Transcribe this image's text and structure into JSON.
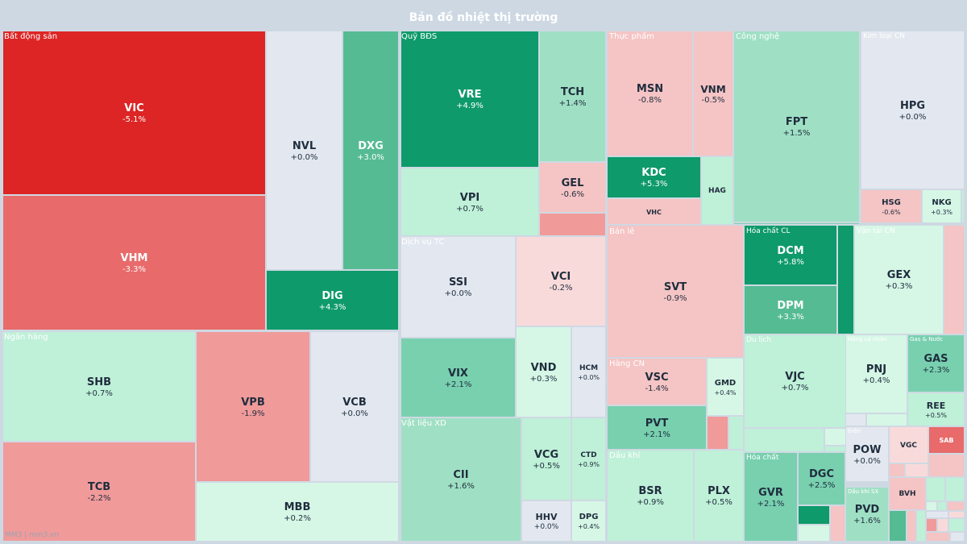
{
  "title": "Bản đồ nhiệt thị trường",
  "footer": "MM3 | mm3.vn",
  "colors": {
    "background": "#cdd8e3",
    "title": "#ffffff",
    "sector_label": "#ffffff",
    "text_dark": "#1f2d3d",
    "scale": {
      "strong_down": "#dd2525",
      "down": "#e86a6a",
      "mild_down": "#f09a9a",
      "slight_down": "#f5c4c4",
      "tiny_down": "#f9dada",
      "flat": "#e3e8f0",
      "tiny_up": "#d6f7e6",
      "slight_up": "#bff0d8",
      "mild_up": "#9fe0c4",
      "up": "#78d0af",
      "strong_up_soft": "#55bb93",
      "strong_up": "#0e9a6a"
    }
  },
  "chart_data": {
    "type": "heatmap",
    "title": "Bản đồ nhiệt thị trường",
    "value_unit": "% change",
    "sectors": [
      {
        "name": "Bất động sản",
        "stocks": [
          {
            "symbol": "VIC",
            "change": -5.1,
            "label": "-5.1%"
          },
          {
            "symbol": "VHM",
            "change": -3.3,
            "label": "-3.3%"
          },
          {
            "symbol": "NVL",
            "change": 0.0,
            "label": "+0.0%"
          },
          {
            "symbol": "DXG",
            "change": 3.0,
            "label": "+3.0%"
          },
          {
            "symbol": "DIG",
            "change": 4.3,
            "label": "+4.3%"
          }
        ]
      },
      {
        "name": "Quỹ BĐS",
        "stocks": [
          {
            "symbol": "VRE",
            "change": 4.9,
            "label": "+4.9%"
          },
          {
            "symbol": "TCH",
            "change": 1.4,
            "label": "+1.4%"
          },
          {
            "symbol": "VPI",
            "change": 0.7,
            "label": "+0.7%"
          },
          {
            "symbol": "GEL",
            "change": -0.6,
            "label": "-0.6%"
          }
        ]
      },
      {
        "name": "Thực phẩm",
        "stocks": [
          {
            "symbol": "MSN",
            "change": -0.8,
            "label": "-0.8%"
          },
          {
            "symbol": "VNM",
            "change": -0.5,
            "label": "-0.5%"
          },
          {
            "symbol": "KDC",
            "change": 5.3,
            "label": "+5.3%"
          },
          {
            "symbol": "HAG",
            "change": null,
            "label": ""
          },
          {
            "symbol": "VHC",
            "change": null,
            "label": ""
          }
        ]
      },
      {
        "name": "Công nghệ",
        "stocks": [
          {
            "symbol": "FPT",
            "change": 1.5,
            "label": "+1.5%"
          }
        ]
      },
      {
        "name": "Kim loại CN",
        "stocks": [
          {
            "symbol": "HPG",
            "change": 0.0,
            "label": "+0.0%"
          },
          {
            "symbol": "HSG",
            "change": -0.6,
            "label": "-0.6%"
          },
          {
            "symbol": "NKG",
            "change": 0.3,
            "label": "+0.3%"
          }
        ]
      },
      {
        "name": "Ngân hàng",
        "stocks": [
          {
            "symbol": "SHB",
            "change": 0.7,
            "label": "+0.7%"
          },
          {
            "symbol": "TCB",
            "change": -2.2,
            "label": "-2.2%"
          },
          {
            "symbol": "VPB",
            "change": -1.9,
            "label": "-1.9%"
          },
          {
            "symbol": "VCB",
            "change": 0.0,
            "label": "+0.0%"
          },
          {
            "symbol": "MBB",
            "change": 0.2,
            "label": "+0.2%"
          }
        ]
      },
      {
        "name": "Dịch vụ TC",
        "stocks": [
          {
            "symbol": "SSI",
            "change": 0.0,
            "label": "+0.0%"
          },
          {
            "symbol": "VCI",
            "change": -0.2,
            "label": "-0.2%"
          },
          {
            "symbol": "VIX",
            "change": 2.1,
            "label": "+2.1%"
          },
          {
            "symbol": "VND",
            "change": 0.3,
            "label": "+0.3%"
          },
          {
            "symbol": "HCM",
            "change": 0.0,
            "label": "+0.0%"
          }
        ]
      },
      {
        "name": "Vật liệu XD",
        "stocks": [
          {
            "symbol": "CII",
            "change": 1.6,
            "label": "+1.6%"
          },
          {
            "symbol": "VCG",
            "change": 0.5,
            "label": "+0.5%"
          },
          {
            "symbol": "CTD",
            "change": 0.9,
            "label": "+0.9%"
          },
          {
            "symbol": "HHV",
            "change": 0.0,
            "label": "+0.0%"
          },
          {
            "symbol": "DPG",
            "change": 0.4,
            "label": "+0.4%"
          }
        ]
      },
      {
        "name": "Bán lẻ",
        "stocks": [
          {
            "symbol": "SVT",
            "change": -0.9,
            "label": "-0.9%"
          }
        ]
      },
      {
        "name": "Hàng CN",
        "stocks": [
          {
            "symbol": "VSC",
            "change": -1.4,
            "label": "-1.4%"
          },
          {
            "symbol": "GMD",
            "change": 0.4,
            "label": "+0.4%"
          },
          {
            "symbol": "PVT",
            "change": 2.1,
            "label": "+2.1%"
          }
        ]
      },
      {
        "name": "Dầu khí",
        "stocks": [
          {
            "symbol": "BSR",
            "change": 0.9,
            "label": "+0.9%"
          },
          {
            "symbol": "PLX",
            "change": 0.5,
            "label": "+0.5%"
          }
        ]
      },
      {
        "name": "Hóa chất CL",
        "stocks": [
          {
            "symbol": "DCM",
            "change": 5.8,
            "label": "+5.8%"
          },
          {
            "symbol": "DPM",
            "change": 3.3,
            "label": "+3.3%"
          }
        ]
      },
      {
        "name": "Du lịch",
        "stocks": [
          {
            "symbol": "VJC",
            "change": 0.7,
            "label": "+0.7%"
          }
        ]
      },
      {
        "name": "Hóa chất",
        "stocks": [
          {
            "symbol": "GVR",
            "change": 2.1,
            "label": "+2.1%"
          },
          {
            "symbol": "DGC",
            "change": 2.5,
            "label": "+2.5%"
          }
        ]
      },
      {
        "name": "Vận tải CN",
        "stocks": [
          {
            "symbol": "GEX",
            "change": 0.3,
            "label": "+0.3%"
          }
        ]
      },
      {
        "name": "Hàng cá nhân",
        "stocks": [
          {
            "symbol": "PNJ",
            "change": 0.4,
            "label": "+0.4%"
          }
        ]
      },
      {
        "name": "Gas & Nước",
        "stocks": [
          {
            "symbol": "GAS",
            "change": 2.3,
            "label": "+2.3%"
          },
          {
            "symbol": "REE",
            "change": 0.5,
            "label": "+0.5%"
          }
        ]
      },
      {
        "name": "Điện",
        "stocks": [
          {
            "symbol": "POW",
            "change": 0.0,
            "label": "+0.0%"
          }
        ]
      },
      {
        "name": "Dầu khí SX",
        "stocks": [
          {
            "symbol": "PVD",
            "change": 1.6,
            "label": "+1.6%"
          }
        ]
      },
      {
        "name": "",
        "stocks": [
          {
            "symbol": "VGC",
            "change": null,
            "label": ""
          },
          {
            "symbol": "SAB",
            "change": null,
            "label": ""
          },
          {
            "symbol": "BVH",
            "change": null,
            "label": ""
          }
        ]
      }
    ]
  }
}
